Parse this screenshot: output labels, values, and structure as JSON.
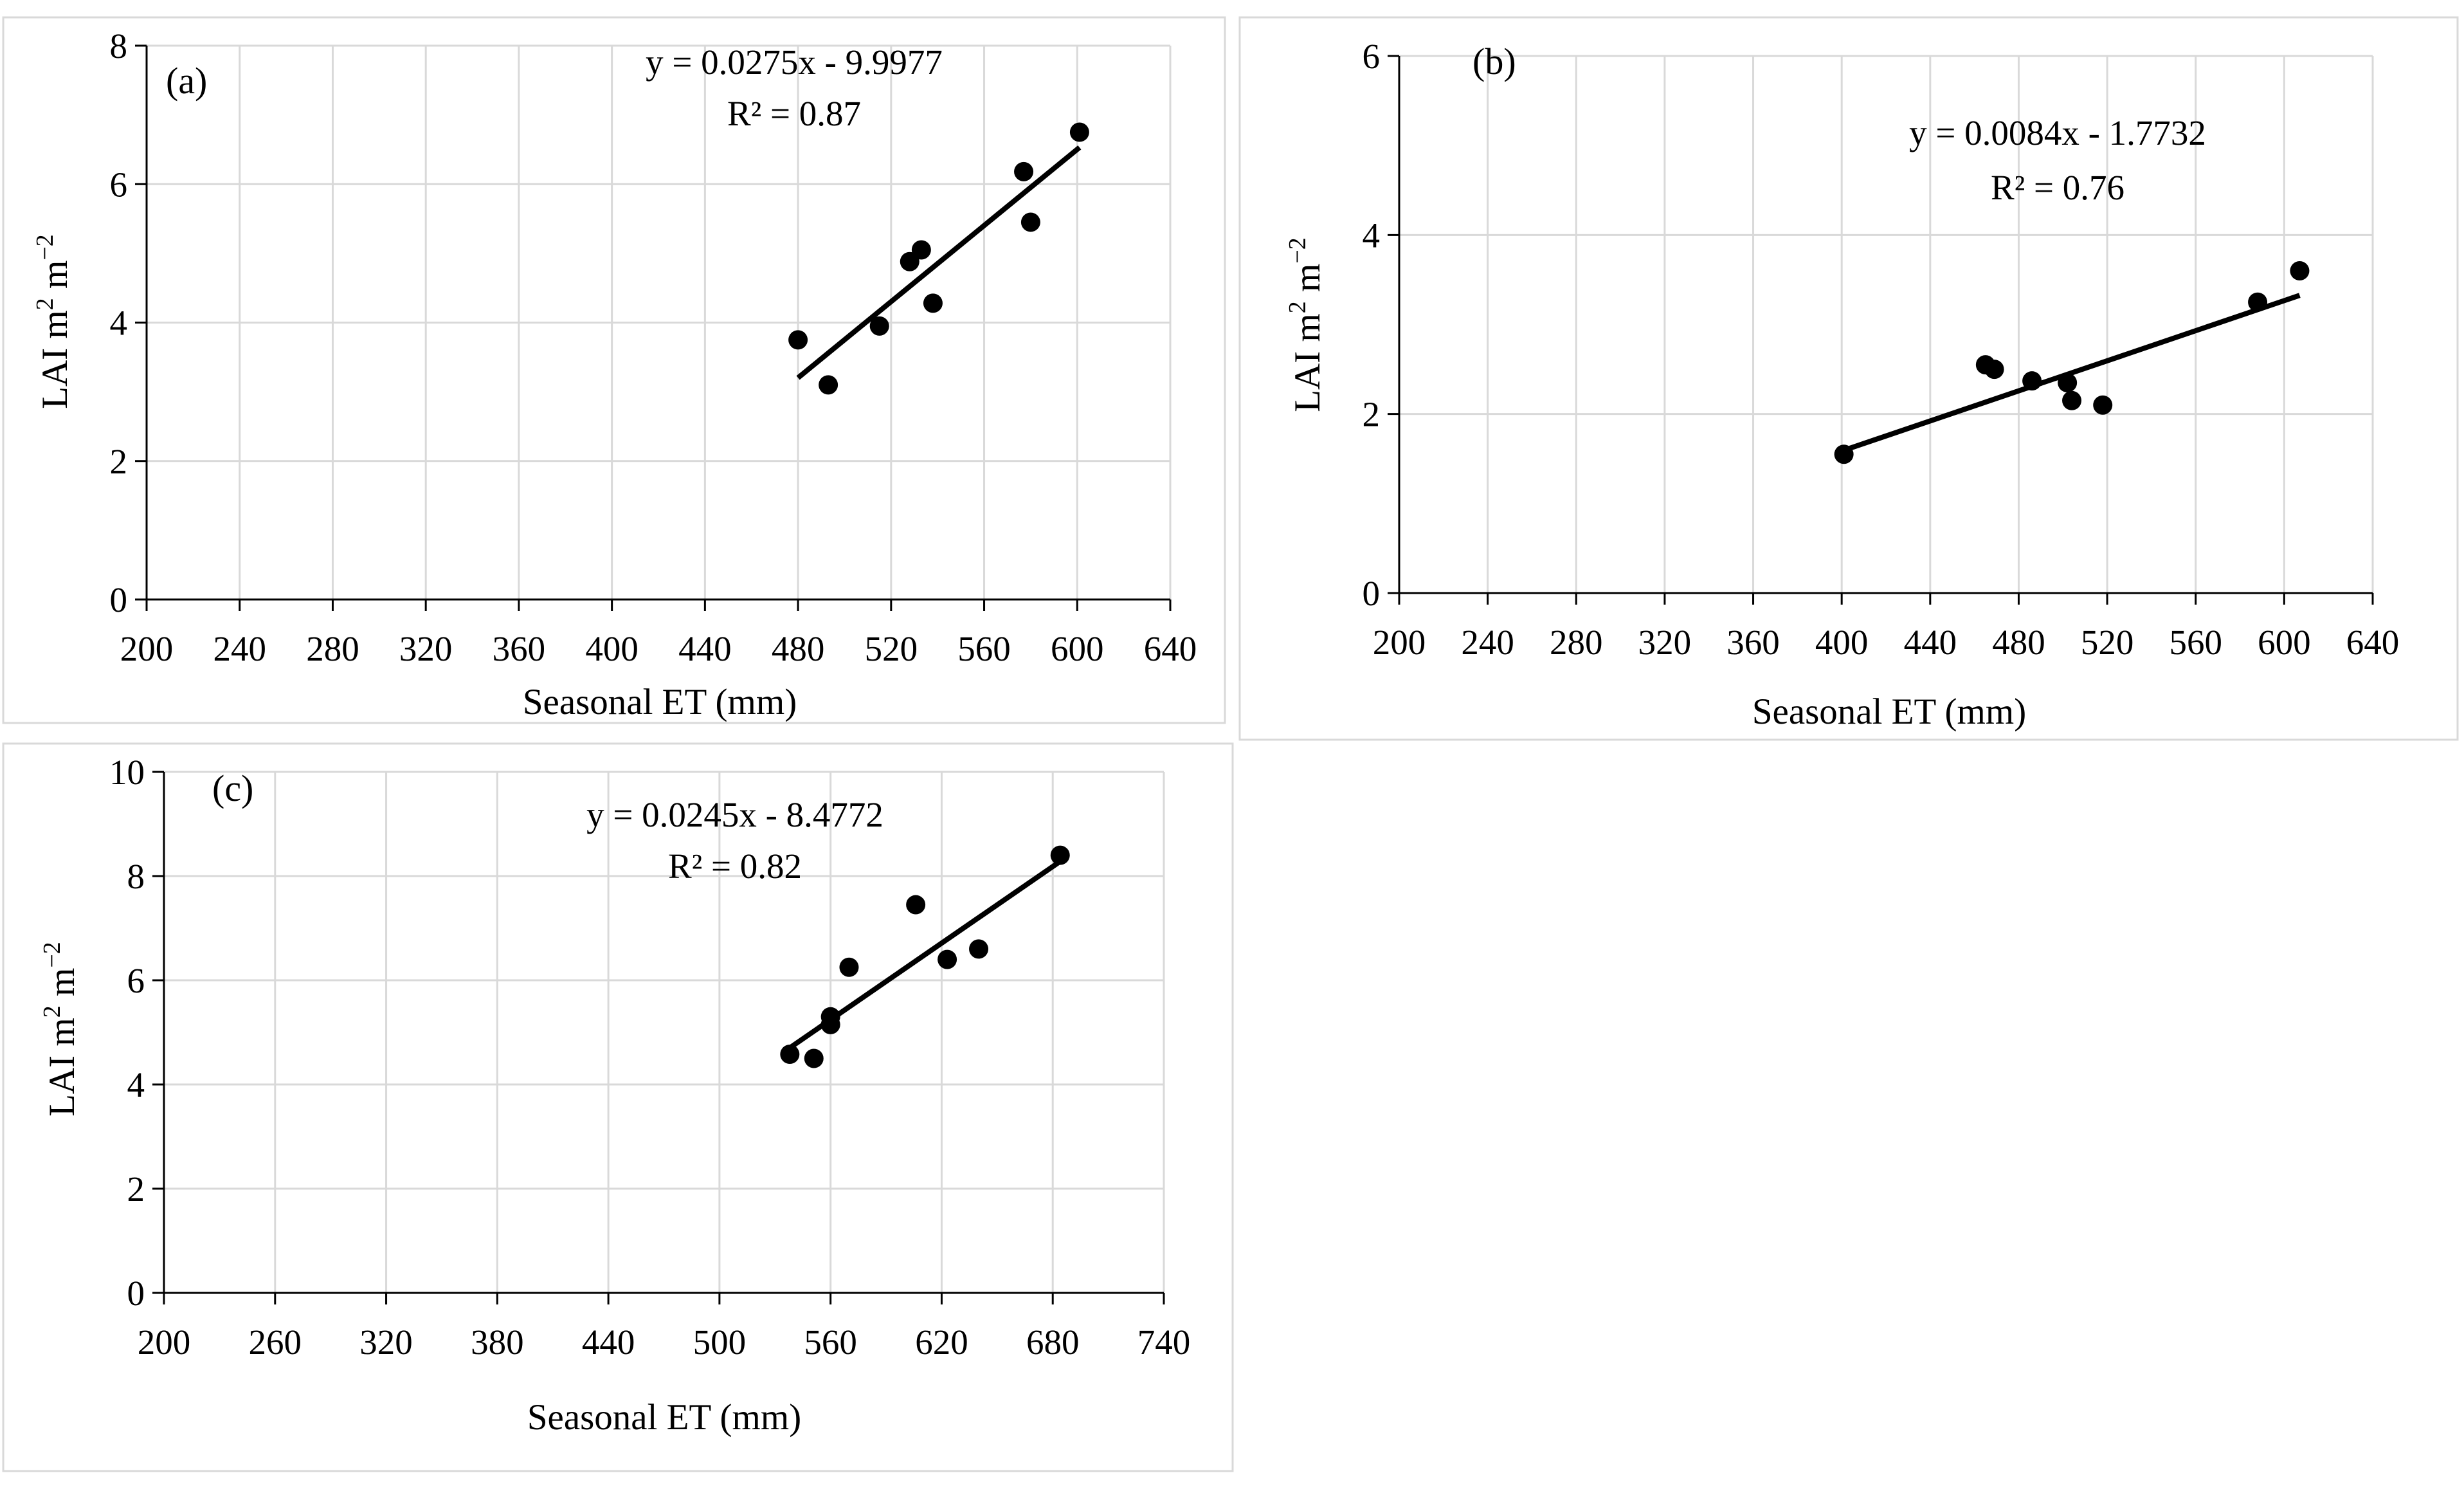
{
  "chart_data": [
    {
      "type": "scatter",
      "panel_label": "(a)",
      "xlabel": "Seasonal ET (mm)",
      "ylabel": "LAI m² m⁻²",
      "ylabel_parts": {
        "base": "LAI m",
        "sup1": "2",
        "mid": " m",
        "sup2": "−2"
      },
      "xlim": [
        200,
        640
      ],
      "ylim": [
        0,
        8
      ],
      "xticks": [
        200,
        240,
        280,
        320,
        360,
        400,
        440,
        480,
        520,
        560,
        600,
        640
      ],
      "yticks": [
        0,
        2,
        4,
        6,
        8
      ],
      "grid": true,
      "points": [
        {
          "x": 480,
          "y": 3.75
        },
        {
          "x": 493,
          "y": 3.1
        },
        {
          "x": 515,
          "y": 3.95
        },
        {
          "x": 528,
          "y": 4.88
        },
        {
          "x": 533,
          "y": 5.05
        },
        {
          "x": 538,
          "y": 4.28
        },
        {
          "x": 577,
          "y": 6.18
        },
        {
          "x": 580,
          "y": 5.45
        },
        {
          "x": 601,
          "y": 6.75
        }
      ],
      "trendline": {
        "slope": 0.0275,
        "intercept": -9.9977,
        "x_start": 480,
        "x_end": 601
      },
      "equation": "y = 0.0275x - 9.9977",
      "r2": "R² = 0.87"
    },
    {
      "type": "scatter",
      "panel_label": "(b)",
      "xlabel": "Seasonal ET (mm)",
      "ylabel": "LAI m² m⁻²",
      "ylabel_parts": {
        "base": "LAI m",
        "sup1": "2",
        "mid": " m",
        "sup2": "−2"
      },
      "xlim": [
        200,
        640
      ],
      "ylim": [
        0,
        6
      ],
      "xticks": [
        200,
        240,
        280,
        320,
        360,
        400,
        440,
        480,
        520,
        560,
        600,
        640
      ],
      "yticks": [
        0,
        2,
        4,
        6
      ],
      "grid": true,
      "points": [
        {
          "x": 401,
          "y": 1.55
        },
        {
          "x": 465,
          "y": 2.55
        },
        {
          "x": 469,
          "y": 2.5
        },
        {
          "x": 486,
          "y": 2.37
        },
        {
          "x": 502,
          "y": 2.35
        },
        {
          "x": 504,
          "y": 2.15
        },
        {
          "x": 518,
          "y": 2.1
        },
        {
          "x": 588,
          "y": 3.25
        },
        {
          "x": 607,
          "y": 3.6
        }
      ],
      "trendline": {
        "slope": 0.0084,
        "intercept": -1.7732,
        "x_start": 401,
        "x_end": 607
      },
      "equation": "y = 0.0084x - 1.7732",
      "r2": "R² = 0.76"
    },
    {
      "type": "scatter",
      "panel_label": "(c)",
      "xlabel": "Seasonal ET (mm)",
      "ylabel": "LAI m² m⁻²",
      "ylabel_parts": {
        "base": "LAI m",
        "sup1": "2",
        "mid": " m",
        "sup2": "−2"
      },
      "xlim": [
        200,
        740
      ],
      "ylim": [
        0,
        10
      ],
      "xticks": [
        200,
        260,
        320,
        380,
        440,
        500,
        560,
        620,
        680,
        740
      ],
      "yticks": [
        0,
        2,
        4,
        6,
        8,
        10
      ],
      "grid": true,
      "points": [
        {
          "x": 538,
          "y": 4.58
        },
        {
          "x": 551,
          "y": 4.5
        },
        {
          "x": 560,
          "y": 5.3
        },
        {
          "x": 560,
          "y": 5.15
        },
        {
          "x": 570,
          "y": 6.25
        },
        {
          "x": 606,
          "y": 7.45
        },
        {
          "x": 623,
          "y": 6.4
        },
        {
          "x": 640,
          "y": 6.6
        },
        {
          "x": 684,
          "y": 8.4
        }
      ],
      "trendline": {
        "slope": 0.0245,
        "intercept": -8.4772,
        "x_start": 538,
        "x_end": 684
      },
      "equation": "y = 0.0245x - 8.4772",
      "r2": "R² = 0.82"
    }
  ]
}
